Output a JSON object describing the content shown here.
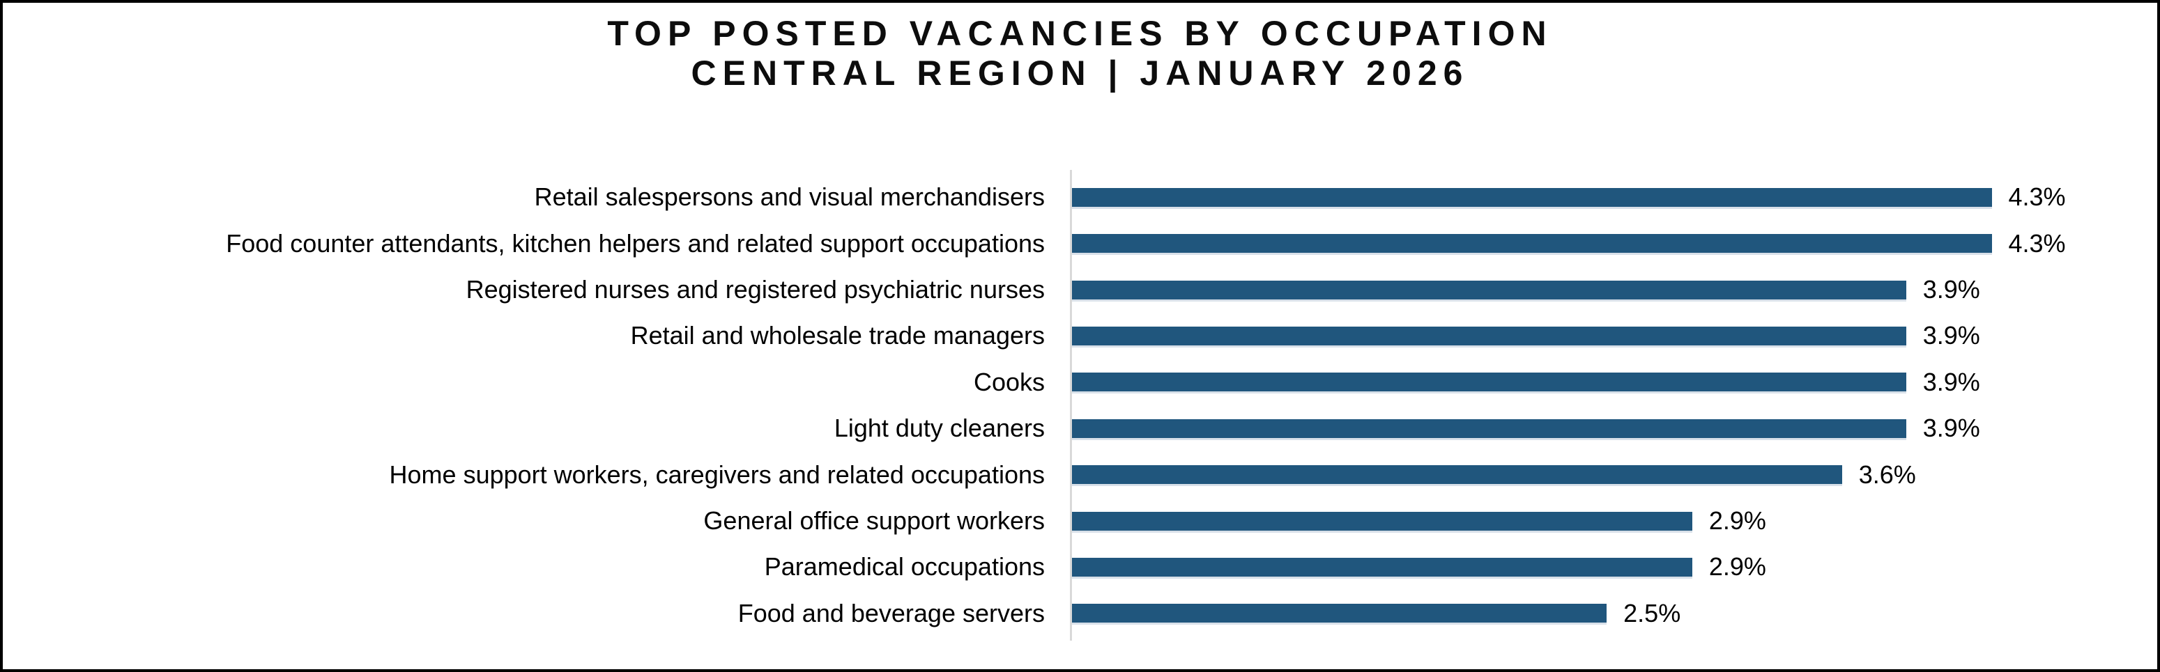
{
  "title": {
    "line1": "TOP POSTED VACANCIES BY OCCUPATION",
    "line2": "CENTRAL REGION | JANUARY 2026"
  },
  "chart_data": {
    "type": "bar",
    "orientation": "horizontal",
    "title": "TOP POSTED VACANCIES BY OCCUPATION",
    "subtitle": "CENTRAL REGION | JANUARY 2026",
    "categories": [
      "Retail salespersons and visual merchandisers",
      "Food counter attendants, kitchen helpers and related support occupations",
      "Registered nurses and registered psychiatric nurses",
      "Retail and wholesale trade managers",
      "Cooks",
      "Light duty cleaners",
      "Home support workers, caregivers and related occupations",
      "General office support workers",
      "Paramedical occupations",
      "Food and beverage servers"
    ],
    "values": [
      4.3,
      4.3,
      3.9,
      3.9,
      3.9,
      3.9,
      3.6,
      2.9,
      2.9,
      2.5
    ],
    "data_labels": [
      "4.3%",
      "4.3%",
      "3.9%",
      "3.9%",
      "3.9%",
      "3.9%",
      "3.6%",
      "2.9%",
      "2.9%",
      "2.5%"
    ],
    "xlabel": "",
    "ylabel": "",
    "xlim": [
      0,
      5.1
    ],
    "grid": false,
    "legend_position": "none",
    "bar_color": "#20567D",
    "axis_line_color": "#D9D9D9",
    "background_color": "#FFFFFF",
    "border_color": "#000000"
  }
}
